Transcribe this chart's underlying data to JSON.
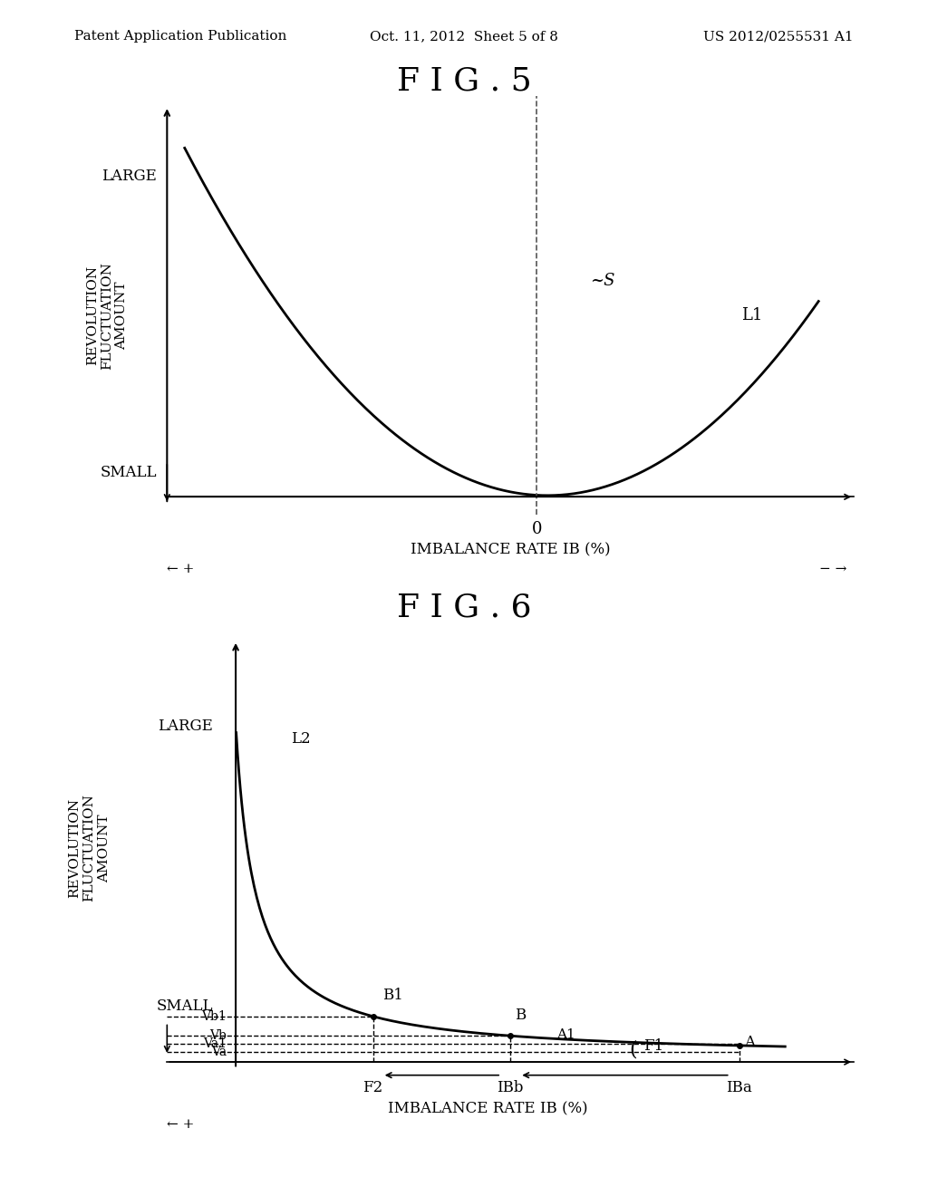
{
  "bg_color": "#ffffff",
  "header_left": "Patent Application Publication",
  "header_center": "Oct. 11, 2012  Sheet 5 of 8",
  "header_right": "US 2012/0255531 A1",
  "fig5_title": "F I G . 5",
  "fig6_title": "F I G . 6",
  "xlabel": "IMBALANCE RATE IB (%)",
  "ylabel_lines": [
    "REVOLUTION",
    "FLUCTUATION",
    "AMOUNT"
  ],
  "fig5_ylabel_large": "LARGE",
  "fig5_ylabel_small": "SMALL",
  "fig6_ylabel_large": "LARGE",
  "fig6_ylabel_small": "SMALL",
  "plus_arrow": "← +",
  "minus_arrow": "− →",
  "curve_color": "#000000",
  "dashed_color": "#555555",
  "annotation_color": "#000000"
}
